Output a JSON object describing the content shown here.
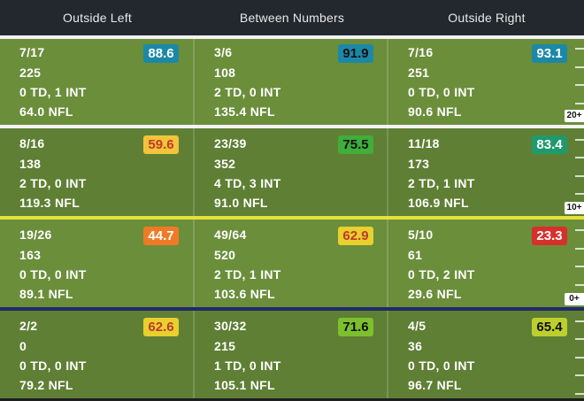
{
  "header": {
    "columns": [
      "Outside Left",
      "Between Numbers",
      "Outside Right"
    ]
  },
  "colors": {
    "line_top": "#f2f2f2",
    "line_mid": "#f2f2f2",
    "line_los": "#e7e03a",
    "line_behind": "#1f2a6b"
  },
  "depth_labels": [
    "20+",
    "10+",
    "0+"
  ],
  "rows": [
    {
      "depth": "20+",
      "cells": [
        {
          "comp": "7/17",
          "yards": "225",
          "tds": "0 TD, 1 INT",
          "rating": "64.0 NFL",
          "grade": "88.6",
          "grade_color": "#1c88a8",
          "grade_text": "#ffffff"
        },
        {
          "comp": "3/6",
          "yards": "108",
          "tds": "2 TD, 0 INT",
          "rating": "135.4 NFL",
          "grade": "91.9",
          "grade_color": "#1c88a8",
          "grade_text": "#111111"
        },
        {
          "comp": "7/16",
          "yards": "251",
          "tds": "0 TD, 0 INT",
          "rating": "90.6 NFL",
          "grade": "93.1",
          "grade_color": "#1c88a8",
          "grade_text": "#ffffff"
        }
      ]
    },
    {
      "depth": "10+",
      "cells": [
        {
          "comp": "8/16",
          "yards": "138",
          "tds": "2 TD, 0 INT",
          "rating": "119.3 NFL",
          "grade": "59.6",
          "grade_color": "#f2c43a",
          "grade_text": "#c0392b"
        },
        {
          "comp": "23/39",
          "yards": "352",
          "tds": "4 TD, 3 INT",
          "rating": "91.0 NFL",
          "grade": "75.5",
          "grade_color": "#3fae3a",
          "grade_text": "#111111"
        },
        {
          "comp": "11/18",
          "yards": "173",
          "tds": "2 TD, 1 INT",
          "rating": "106.9 NFL",
          "grade": "83.4",
          "grade_color": "#1f9a6c",
          "grade_text": "#ffffff"
        }
      ]
    },
    {
      "depth": "0+",
      "cells": [
        {
          "comp": "19/26",
          "yards": "163",
          "tds": "0 TD, 0 INT",
          "rating": "89.1 NFL",
          "grade": "44.7",
          "grade_color": "#ef7a26",
          "grade_text": "#ffffff"
        },
        {
          "comp": "49/64",
          "yards": "520",
          "tds": "2 TD, 1 INT",
          "rating": "103.6 NFL",
          "grade": "62.9",
          "grade_color": "#e8d02e",
          "grade_text": "#c0392b"
        },
        {
          "comp": "5/10",
          "yards": "61",
          "tds": "0 TD, 2 INT",
          "rating": "29.6 NFL",
          "grade": "23.3",
          "grade_color": "#d6302a",
          "grade_text": "#ffffff"
        }
      ]
    },
    {
      "depth": "",
      "cells": [
        {
          "comp": "2/2",
          "yards": "0",
          "tds": "0 TD, 0 INT",
          "rating": "79.2 NFL",
          "grade": "62.6",
          "grade_color": "#e8d02e",
          "grade_text": "#c0392b"
        },
        {
          "comp": "30/32",
          "yards": "215",
          "tds": "1 TD, 0 INT",
          "rating": "105.1 NFL",
          "grade": "71.6",
          "grade_color": "#7cc02e",
          "grade_text": "#111111"
        },
        {
          "comp": "4/5",
          "yards": "36",
          "tds": "0 TD, 0 INT",
          "rating": "96.7 NFL",
          "grade": "65.4",
          "grade_color": "#bccf2e",
          "grade_text": "#111111"
        }
      ]
    }
  ]
}
